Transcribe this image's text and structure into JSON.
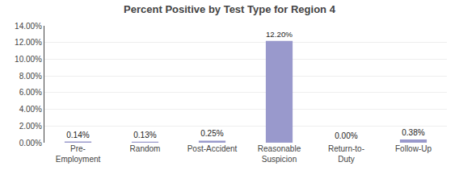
{
  "chart_data": {
    "type": "bar",
    "title": "Percent Positive by Test Type for Region 4",
    "categories": [
      "Pre-\nEmployment",
      "Random",
      "Post-Accident",
      "Reasonable\nSuspicion",
      "Return-to-\nDuty",
      "Follow-Up"
    ],
    "values": [
      0.0014,
      0.0013,
      0.0025,
      0.122,
      0.0,
      0.0038
    ],
    "value_labels": [
      "0.14%",
      "0.13%",
      "0.25%",
      "12.20%",
      "0.00%",
      "0.38%"
    ],
    "data_labels": true,
    "color": "#9999cc",
    "ylim": [
      0,
      0.14
    ],
    "yticks": [
      {
        "value": 0.0,
        "label": "0.00%"
      },
      {
        "value": 0.02,
        "label": "2.00%"
      },
      {
        "value": 0.04,
        "label": "4.00%"
      },
      {
        "value": 0.06,
        "label": "6.00%"
      },
      {
        "value": 0.08,
        "label": "8.00%"
      },
      {
        "value": 0.1,
        "label": "10.00%"
      },
      {
        "value": 0.12,
        "label": "12.00%"
      },
      {
        "value": 0.14,
        "label": "14.00%"
      }
    ],
    "grid": true
  }
}
